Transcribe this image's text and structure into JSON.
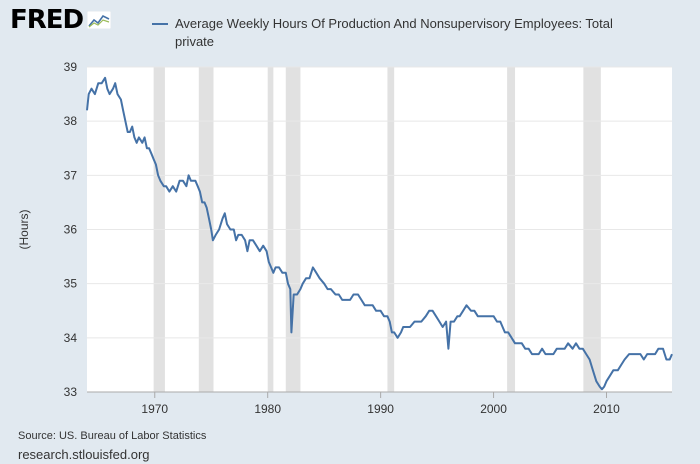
{
  "logo": {
    "text": "FRED"
  },
  "source": "Source: US. Bureau of Labor Statistics",
  "url": "research.stlouisfed.org",
  "colors": {
    "series": "#4572a7",
    "recession": "#e1e1e1",
    "grid": "#e8e8e8",
    "background": "#e1e9f0"
  },
  "chart_data": {
    "type": "line",
    "title": "",
    "xlabel": "",
    "ylabel": "(Hours)",
    "xlim": [
      1964.0,
      2015.8
    ],
    "ylim": [
      33,
      39
    ],
    "grid": true,
    "legend_position": "top",
    "x_ticks": [
      1970,
      1980,
      1990,
      2000,
      2010
    ],
    "x_tick_labels": [
      "1970",
      "1980",
      "1990",
      "2000",
      "2010"
    ],
    "y_ticks": [
      33,
      34,
      35,
      36,
      37,
      38,
      39
    ],
    "y_tick_labels": [
      "33",
      "34",
      "35",
      "36",
      "37",
      "38",
      "39"
    ],
    "recessions": [
      [
        1969.9,
        1970.9
      ],
      [
        1973.9,
        1975.2
      ],
      [
        1980.0,
        1980.5
      ],
      [
        1981.6,
        1982.9
      ],
      [
        1990.6,
        1991.2
      ],
      [
        2001.2,
        2001.9
      ],
      [
        2007.95,
        2009.5
      ]
    ],
    "series": [
      {
        "name": "Average Weekly Hours Of Production And Nonsupervisory Employees: Total private",
        "points": [
          [
            1964.0,
            38.2
          ],
          [
            1964.15,
            38.5
          ],
          [
            1964.4,
            38.6
          ],
          [
            1964.7,
            38.5
          ],
          [
            1965.0,
            38.7
          ],
          [
            1965.3,
            38.7
          ],
          [
            1965.6,
            38.8
          ],
          [
            1965.8,
            38.6
          ],
          [
            1966.0,
            38.5
          ],
          [
            1966.3,
            38.6
          ],
          [
            1966.5,
            38.7
          ],
          [
            1966.7,
            38.5
          ],
          [
            1967.0,
            38.4
          ],
          [
            1967.2,
            38.2
          ],
          [
            1967.4,
            38.0
          ],
          [
            1967.6,
            37.8
          ],
          [
            1967.8,
            37.8
          ],
          [
            1968.0,
            37.9
          ],
          [
            1968.2,
            37.7
          ],
          [
            1968.4,
            37.6
          ],
          [
            1968.6,
            37.7
          ],
          [
            1968.9,
            37.6
          ],
          [
            1969.1,
            37.7
          ],
          [
            1969.3,
            37.5
          ],
          [
            1969.5,
            37.5
          ],
          [
            1969.7,
            37.4
          ],
          [
            1969.9,
            37.3
          ],
          [
            1970.1,
            37.2
          ],
          [
            1970.3,
            37.0
          ],
          [
            1970.5,
            36.9
          ],
          [
            1970.8,
            36.8
          ],
          [
            1971.0,
            36.8
          ],
          [
            1971.3,
            36.7
          ],
          [
            1971.6,
            36.8
          ],
          [
            1971.9,
            36.7
          ],
          [
            1972.2,
            36.9
          ],
          [
            1972.5,
            36.9
          ],
          [
            1972.8,
            36.8
          ],
          [
            1973.0,
            37.0
          ],
          [
            1973.2,
            36.9
          ],
          [
            1973.4,
            36.9
          ],
          [
            1973.6,
            36.9
          ],
          [
            1973.8,
            36.8
          ],
          [
            1974.0,
            36.7
          ],
          [
            1974.2,
            36.5
          ],
          [
            1974.4,
            36.5
          ],
          [
            1974.6,
            36.4
          ],
          [
            1974.8,
            36.2
          ],
          [
            1975.0,
            36.0
          ],
          [
            1975.15,
            35.8
          ],
          [
            1975.4,
            35.9
          ],
          [
            1975.7,
            36.0
          ],
          [
            1976.0,
            36.2
          ],
          [
            1976.2,
            36.3
          ],
          [
            1976.4,
            36.1
          ],
          [
            1976.7,
            36.0
          ],
          [
            1977.0,
            36.0
          ],
          [
            1977.2,
            35.8
          ],
          [
            1977.4,
            35.9
          ],
          [
            1977.7,
            35.9
          ],
          [
            1978.0,
            35.8
          ],
          [
            1978.2,
            35.6
          ],
          [
            1978.4,
            35.8
          ],
          [
            1978.7,
            35.8
          ],
          [
            1979.0,
            35.7
          ],
          [
            1979.3,
            35.6
          ],
          [
            1979.6,
            35.7
          ],
          [
            1979.9,
            35.6
          ],
          [
            1980.1,
            35.4
          ],
          [
            1980.3,
            35.3
          ],
          [
            1980.5,
            35.2
          ],
          [
            1980.7,
            35.3
          ],
          [
            1981.0,
            35.3
          ],
          [
            1981.3,
            35.2
          ],
          [
            1981.6,
            35.2
          ],
          [
            1981.8,
            35.0
          ],
          [
            1982.0,
            34.9
          ],
          [
            1982.1,
            34.1
          ],
          [
            1982.3,
            34.8
          ],
          [
            1982.6,
            34.8
          ],
          [
            1982.9,
            34.9
          ],
          [
            1983.1,
            35.0
          ],
          [
            1983.4,
            35.1
          ],
          [
            1983.7,
            35.1
          ],
          [
            1984.0,
            35.3
          ],
          [
            1984.3,
            35.2
          ],
          [
            1984.6,
            35.1
          ],
          [
            1985.0,
            35.0
          ],
          [
            1985.3,
            34.9
          ],
          [
            1985.6,
            34.9
          ],
          [
            1986.0,
            34.8
          ],
          [
            1986.3,
            34.8
          ],
          [
            1986.6,
            34.7
          ],
          [
            1987.0,
            34.7
          ],
          [
            1987.3,
            34.7
          ],
          [
            1987.6,
            34.8
          ],
          [
            1988.0,
            34.8
          ],
          [
            1988.3,
            34.7
          ],
          [
            1988.6,
            34.6
          ],
          [
            1989.0,
            34.6
          ],
          [
            1989.3,
            34.6
          ],
          [
            1989.6,
            34.5
          ],
          [
            1990.0,
            34.5
          ],
          [
            1990.3,
            34.4
          ],
          [
            1990.6,
            34.4
          ],
          [
            1990.8,
            34.3
          ],
          [
            1991.0,
            34.1
          ],
          [
            1991.2,
            34.1
          ],
          [
            1991.5,
            34.0
          ],
          [
            1991.8,
            34.1
          ],
          [
            1992.0,
            34.2
          ],
          [
            1992.3,
            34.2
          ],
          [
            1992.6,
            34.2
          ],
          [
            1993.0,
            34.3
          ],
          [
            1993.3,
            34.3
          ],
          [
            1993.6,
            34.3
          ],
          [
            1994.0,
            34.4
          ],
          [
            1994.3,
            34.5
          ],
          [
            1994.6,
            34.5
          ],
          [
            1994.9,
            34.4
          ],
          [
            1995.2,
            34.3
          ],
          [
            1995.5,
            34.2
          ],
          [
            1995.8,
            34.3
          ],
          [
            1996.0,
            33.8
          ],
          [
            1996.2,
            34.3
          ],
          [
            1996.5,
            34.3
          ],
          [
            1996.8,
            34.4
          ],
          [
            1997.0,
            34.4
          ],
          [
            1997.3,
            34.5
          ],
          [
            1997.6,
            34.6
          ],
          [
            1998.0,
            34.5
          ],
          [
            1998.3,
            34.5
          ],
          [
            1998.6,
            34.4
          ],
          [
            1999.0,
            34.4
          ],
          [
            1999.3,
            34.4
          ],
          [
            1999.6,
            34.4
          ],
          [
            2000.0,
            34.4
          ],
          [
            2000.3,
            34.3
          ],
          [
            2000.6,
            34.3
          ],
          [
            2001.0,
            34.1
          ],
          [
            2001.3,
            34.1
          ],
          [
            2001.6,
            34.0
          ],
          [
            2001.9,
            33.9
          ],
          [
            2002.2,
            33.9
          ],
          [
            2002.5,
            33.9
          ],
          [
            2002.8,
            33.8
          ],
          [
            2003.1,
            33.8
          ],
          [
            2003.4,
            33.7
          ],
          [
            2003.7,
            33.7
          ],
          [
            2004.0,
            33.7
          ],
          [
            2004.3,
            33.8
          ],
          [
            2004.6,
            33.7
          ],
          [
            2005.0,
            33.7
          ],
          [
            2005.3,
            33.7
          ],
          [
            2005.6,
            33.8
          ],
          [
            2006.0,
            33.8
          ],
          [
            2006.3,
            33.8
          ],
          [
            2006.6,
            33.9
          ],
          [
            2007.0,
            33.8
          ],
          [
            2007.3,
            33.9
          ],
          [
            2007.6,
            33.8
          ],
          [
            2007.9,
            33.8
          ],
          [
            2008.2,
            33.7
          ],
          [
            2008.5,
            33.6
          ],
          [
            2008.8,
            33.4
          ],
          [
            2009.1,
            33.2
          ],
          [
            2009.4,
            33.1
          ],
          [
            2009.6,
            33.05
          ],
          [
            2009.8,
            33.1
          ],
          [
            2010.0,
            33.2
          ],
          [
            2010.3,
            33.3
          ],
          [
            2010.6,
            33.4
          ],
          [
            2011.0,
            33.4
          ],
          [
            2011.3,
            33.5
          ],
          [
            2011.6,
            33.6
          ],
          [
            2012.0,
            33.7
          ],
          [
            2012.3,
            33.7
          ],
          [
            2012.6,
            33.7
          ],
          [
            2013.0,
            33.7
          ],
          [
            2013.3,
            33.6
          ],
          [
            2013.6,
            33.7
          ],
          [
            2014.0,
            33.7
          ],
          [
            2014.3,
            33.7
          ],
          [
            2014.6,
            33.8
          ],
          [
            2015.0,
            33.8
          ],
          [
            2015.3,
            33.6
          ],
          [
            2015.6,
            33.6
          ],
          [
            2015.8,
            33.7
          ]
        ]
      }
    ]
  }
}
